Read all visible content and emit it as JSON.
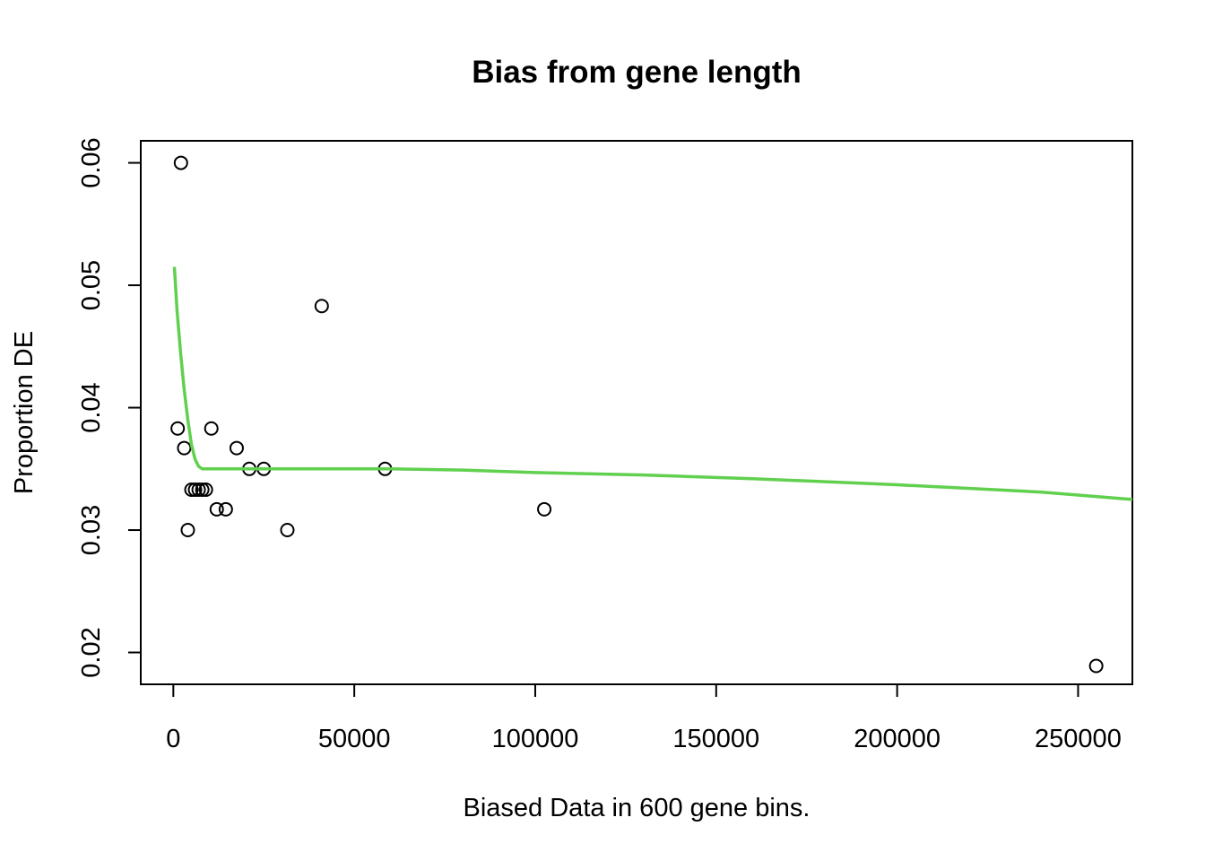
{
  "chart_data": {
    "type": "scatter",
    "title": "Bias from gene length",
    "xlabel": "Biased Data in 600 gene bins.",
    "ylabel": "Proportion DE",
    "xlim": [
      -9000,
      265000
    ],
    "ylim": [
      0.0174,
      0.0618
    ],
    "xticks": [
      {
        "value": 0,
        "label": "0"
      },
      {
        "value": 50000,
        "label": "50000"
      },
      {
        "value": 100000,
        "label": "100000"
      },
      {
        "value": 150000,
        "label": "150000"
      },
      {
        "value": 200000,
        "label": "200000"
      },
      {
        "value": 250000,
        "label": "250000"
      }
    ],
    "yticks": [
      {
        "value": 0.02,
        "label": "0.02"
      },
      {
        "value": 0.03,
        "label": "0.03"
      },
      {
        "value": 0.04,
        "label": "0.04"
      },
      {
        "value": 0.05,
        "label": "0.05"
      },
      {
        "value": 0.06,
        "label": "0.06"
      }
    ],
    "grid": false,
    "points": {
      "color": "#000000",
      "x": [
        1200,
        2100,
        3000,
        4000,
        5000,
        6000,
        7000,
        8000,
        9000,
        10500,
        12000,
        14500,
        17500,
        21000,
        25000,
        31500,
        41000,
        58500,
        102500,
        255000
      ],
      "y": [
        0.0383,
        0.06,
        0.0367,
        0.03,
        0.0333,
        0.0333,
        0.0333,
        0.0333,
        0.0333,
        0.0383,
        0.0317,
        0.0317,
        0.0367,
        0.035,
        0.035,
        0.03,
        0.0483,
        0.035,
        0.0317,
        0.0189
      ]
    },
    "fit_line": {
      "color": "#61d04f",
      "x": [
        300,
        1000,
        2000,
        3000,
        4000,
        5000,
        6000,
        7000,
        8000,
        10000,
        20000,
        40000,
        60000,
        80000,
        100000,
        130000,
        160000,
        200000,
        240000,
        265000
      ],
      "y": [
        0.0515,
        0.048,
        0.0445,
        0.0415,
        0.039,
        0.037,
        0.0358,
        0.0352,
        0.035,
        0.035,
        0.035,
        0.035,
        0.035,
        0.0349,
        0.0347,
        0.0345,
        0.0342,
        0.0337,
        0.0331,
        0.0325
      ]
    }
  }
}
